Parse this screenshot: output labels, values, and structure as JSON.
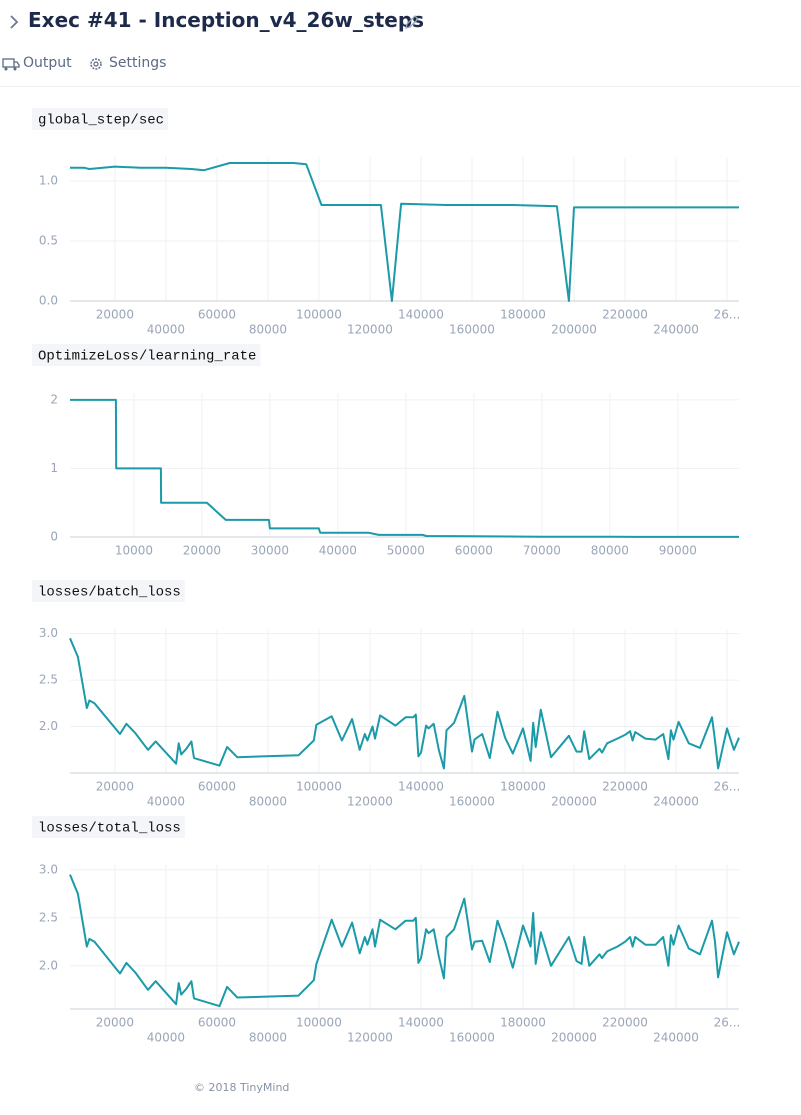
{
  "header": {
    "title": "Exec #41 - Inception_v4_26w_steps"
  },
  "tabs": [
    "Output",
    "Settings"
  ],
  "footer": "© 2018 TinyMind",
  "chart_data": [
    {
      "type": "line",
      "title": "global_step/sec",
      "color": "#1b9aa8",
      "grid": true,
      "x": [
        2400,
        8000,
        10000,
        20000,
        30000,
        40000,
        50000,
        55000,
        65000,
        70000,
        90000,
        95000,
        101000,
        120000,
        124300,
        128600,
        132200,
        150000,
        176000,
        193300,
        198000,
        200000,
        230000,
        264700
      ],
      "values": [
        1.11,
        1.11,
        1.1,
        1.12,
        1.11,
        1.11,
        1.1,
        1.09,
        1.15,
        1.15,
        1.15,
        1.14,
        0.8,
        0.8,
        0.8,
        0.0,
        0.81,
        0.8,
        0.8,
        0.79,
        0.0,
        0.78,
        0.78,
        0.78
      ],
      "xlim": [
        2400,
        264700
      ],
      "ylim": [
        0,
        1.2
      ],
      "xticks": [
        20000,
        40000,
        60000,
        80000,
        100000,
        120000,
        140000,
        160000,
        180000,
        200000,
        220000,
        240000,
        {
          "value": 260000,
          "label": "26..."
        }
      ],
      "yticks": [
        {
          "value": 0,
          "label": "0.0"
        },
        {
          "value": 0.5,
          "label": "0.5"
        },
        {
          "value": 1,
          "label": "1.0"
        }
      ]
    },
    {
      "type": "line",
      "title": "OptimizeLoss/learning_rate",
      "color": "#1b9aa8",
      "grid": true,
      "x": [
        600,
        7350,
        7400,
        13970,
        14000,
        20740,
        23500,
        29850,
        30000,
        37200,
        37400,
        44500,
        46000,
        52500,
        53000,
        60000,
        70000,
        80000,
        99000
      ],
      "values": [
        2,
        2,
        1,
        1,
        0.5,
        0.5,
        0.25,
        0.25,
        0.125,
        0.125,
        0.0625,
        0.0625,
        0.03,
        0.03,
        0.015,
        0.01,
        0.005,
        0.003,
        0.001
      ],
      "xlim": [
        600,
        99000
      ],
      "ylim": [
        0,
        2.1
      ],
      "xticks": [
        10000,
        20000,
        30000,
        40000,
        50000,
        60000,
        70000,
        80000,
        90000
      ],
      "yticks": [
        0,
        1,
        2
      ]
    },
    {
      "type": "line",
      "title": "losses/batch_loss",
      "color": "#1b9aa8",
      "grid": true,
      "x": [
        2400,
        5500,
        9000,
        10000,
        12000,
        22000,
        24500,
        28000,
        33000,
        36000,
        44000,
        45000,
        46000,
        48000,
        50000,
        51000,
        61000,
        64000,
        68000,
        92000,
        98000,
        99000,
        105000,
        109000,
        113000,
        116000,
        118000,
        119000,
        121000,
        122000,
        124000,
        130000,
        134000,
        137000,
        138000,
        139000,
        140000,
        142000,
        143000,
        145000,
        147000,
        149000,
        150000,
        153000,
        157000,
        160000,
        161000,
        164000,
        167000,
        170000,
        173000,
        176000,
        180000,
        183000,
        184000,
        185000,
        187000,
        191000,
        198000,
        201000,
        203000,
        204000,
        206000,
        210000,
        211000,
        213000,
        217000,
        220000,
        222000,
        223000,
        224000,
        228000,
        232000,
        235000,
        237000,
        238000,
        239000,
        241000,
        245000,
        249400,
        254100,
        255300,
        256500,
        260000,
        262700,
        264700
      ],
      "values": [
        2.95,
        2.75,
        2.2,
        2.28,
        2.25,
        1.92,
        2.03,
        1.93,
        1.75,
        1.84,
        1.6,
        1.82,
        1.7,
        1.76,
        1.84,
        1.66,
        1.58,
        1.78,
        1.67,
        1.69,
        1.85,
        2.02,
        2.11,
        1.85,
        2.08,
        1.75,
        1.92,
        1.85,
        2.0,
        1.87,
        2.12,
        2.01,
        2.1,
        2.1,
        2.13,
        1.68,
        1.72,
        2.01,
        1.98,
        2.03,
        1.75,
        1.55,
        1.96,
        2.04,
        2.33,
        1.73,
        1.86,
        1.92,
        1.66,
        2.16,
        1.88,
        1.71,
        1.98,
        1.63,
        2.04,
        1.78,
        2.18,
        1.67,
        1.9,
        1.73,
        1.73,
        1.95,
        1.65,
        1.76,
        1.72,
        1.82,
        1.87,
        1.91,
        1.95,
        1.85,
        1.94,
        1.87,
        1.86,
        1.92,
        1.65,
        1.96,
        1.86,
        2.05,
        1.82,
        1.77,
        2.1,
        1.85,
        1.55,
        1.98,
        1.75,
        1.88
      ],
      "xlim": [
        2400,
        264700
      ],
      "ylim": [
        1.5,
        3.05
      ],
      "xticks": [
        20000,
        40000,
        60000,
        80000,
        100000,
        120000,
        140000,
        160000,
        180000,
        200000,
        220000,
        240000,
        {
          "value": 260000,
          "label": "26..."
        }
      ],
      "yticks": [
        {
          "value": 2,
          "label": "2.0"
        },
        {
          "value": 2.5,
          "label": "2.5"
        },
        {
          "value": 3,
          "label": "3.0"
        }
      ]
    },
    {
      "type": "line",
      "title": "losses/total_loss",
      "color": "#1b9aa8",
      "grid": true,
      "x": [
        2400,
        5500,
        9000,
        10000,
        12000,
        22000,
        24500,
        28000,
        33000,
        36000,
        44000,
        45000,
        46000,
        48000,
        50000,
        51000,
        61000,
        64000,
        68000,
        92000,
        98000,
        99000,
        105000,
        109000,
        113000,
        116000,
        118000,
        119000,
        121000,
        122000,
        124000,
        130000,
        134000,
        137000,
        138000,
        139000,
        140000,
        142000,
        143000,
        145000,
        147000,
        149000,
        150000,
        153000,
        157000,
        160000,
        161000,
        164000,
        167000,
        170000,
        173000,
        176000,
        180000,
        183000,
        184000,
        185000,
        187000,
        191000,
        198000,
        201000,
        203000,
        204000,
        206000,
        210000,
        211000,
        213000,
        217000,
        220000,
        222000,
        223000,
        224000,
        228000,
        232000,
        235000,
        237000,
        238000,
        239000,
        241000,
        245000,
        249400,
        254100,
        255300,
        256500,
        260000,
        262700,
        264700
      ],
      "values": [
        2.95,
        2.75,
        2.2,
        2.28,
        2.25,
        1.92,
        2.03,
        1.93,
        1.75,
        1.84,
        1.6,
        1.82,
        1.7,
        1.76,
        1.84,
        1.66,
        1.58,
        1.78,
        1.67,
        1.69,
        1.85,
        2.02,
        2.48,
        2.2,
        2.45,
        2.13,
        2.3,
        2.22,
        2.38,
        2.2,
        2.48,
        2.38,
        2.47,
        2.47,
        2.5,
        2.03,
        2.08,
        2.38,
        2.34,
        2.38,
        2.1,
        1.87,
        2.3,
        2.38,
        2.7,
        2.17,
        2.25,
        2.26,
        2.04,
        2.47,
        2.25,
        1.98,
        2.42,
        2.2,
        2.55,
        2.02,
        2.35,
        2.0,
        2.3,
        2.05,
        2.02,
        2.3,
        2.0,
        2.12,
        2.08,
        2.15,
        2.2,
        2.25,
        2.3,
        2.2,
        2.3,
        2.22,
        2.22,
        2.3,
        2.0,
        2.32,
        2.22,
        2.42,
        2.18,
        2.12,
        2.47,
        2.25,
        1.88,
        2.35,
        2.12,
        2.25
      ],
      "xlim": [
        2400,
        264700
      ],
      "ylim": [
        1.55,
        3.05
      ],
      "xticks": [
        20000,
        40000,
        60000,
        80000,
        100000,
        120000,
        140000,
        160000,
        180000,
        200000,
        220000,
        240000,
        {
          "value": 260000,
          "label": "26..."
        }
      ],
      "yticks": [
        {
          "value": 2,
          "label": "2.0"
        },
        {
          "value": 2.5,
          "label": "2.5"
        },
        {
          "value": 3,
          "label": "3.0"
        }
      ]
    }
  ]
}
